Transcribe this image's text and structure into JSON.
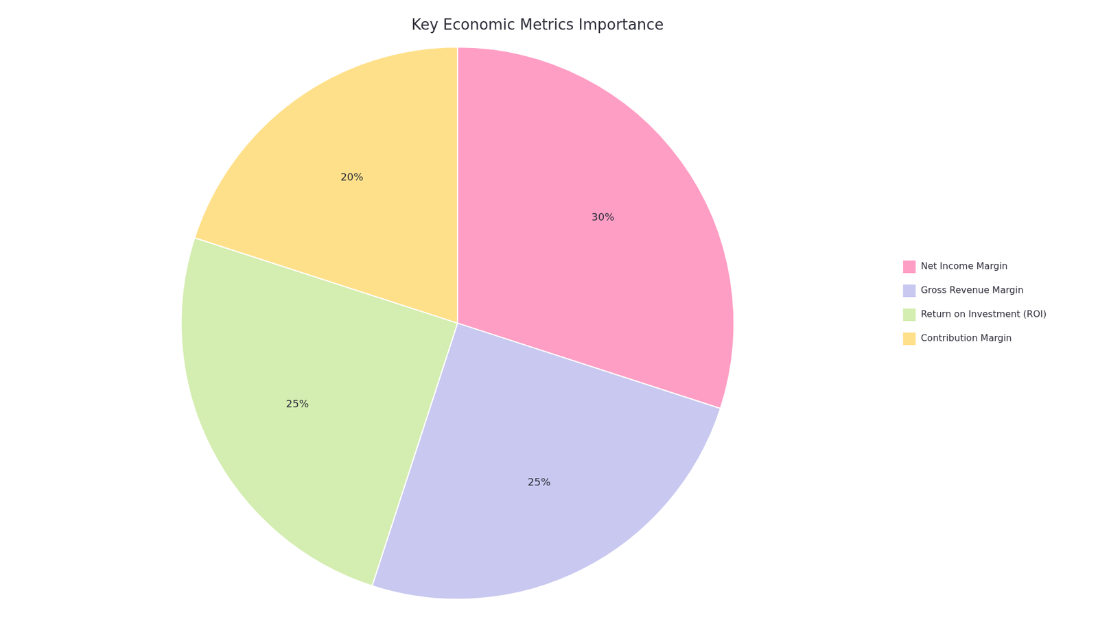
{
  "chart_data": {
    "type": "pie",
    "title": "Key Economic Metrics Importance",
    "categories": [
      "Net Income Margin",
      "Gross Revenue Margin",
      "Return on Investment (ROI)",
      "Contribution Margin"
    ],
    "values": [
      30,
      25,
      25,
      20
    ],
    "value_labels": [
      "30%",
      "25%",
      "25%",
      "20%"
    ],
    "colors": [
      "#FF9EC4",
      "#C8C8F0",
      "#D4EDB0",
      "#FFE08A"
    ],
    "data_labels": true,
    "legend": "right"
  }
}
